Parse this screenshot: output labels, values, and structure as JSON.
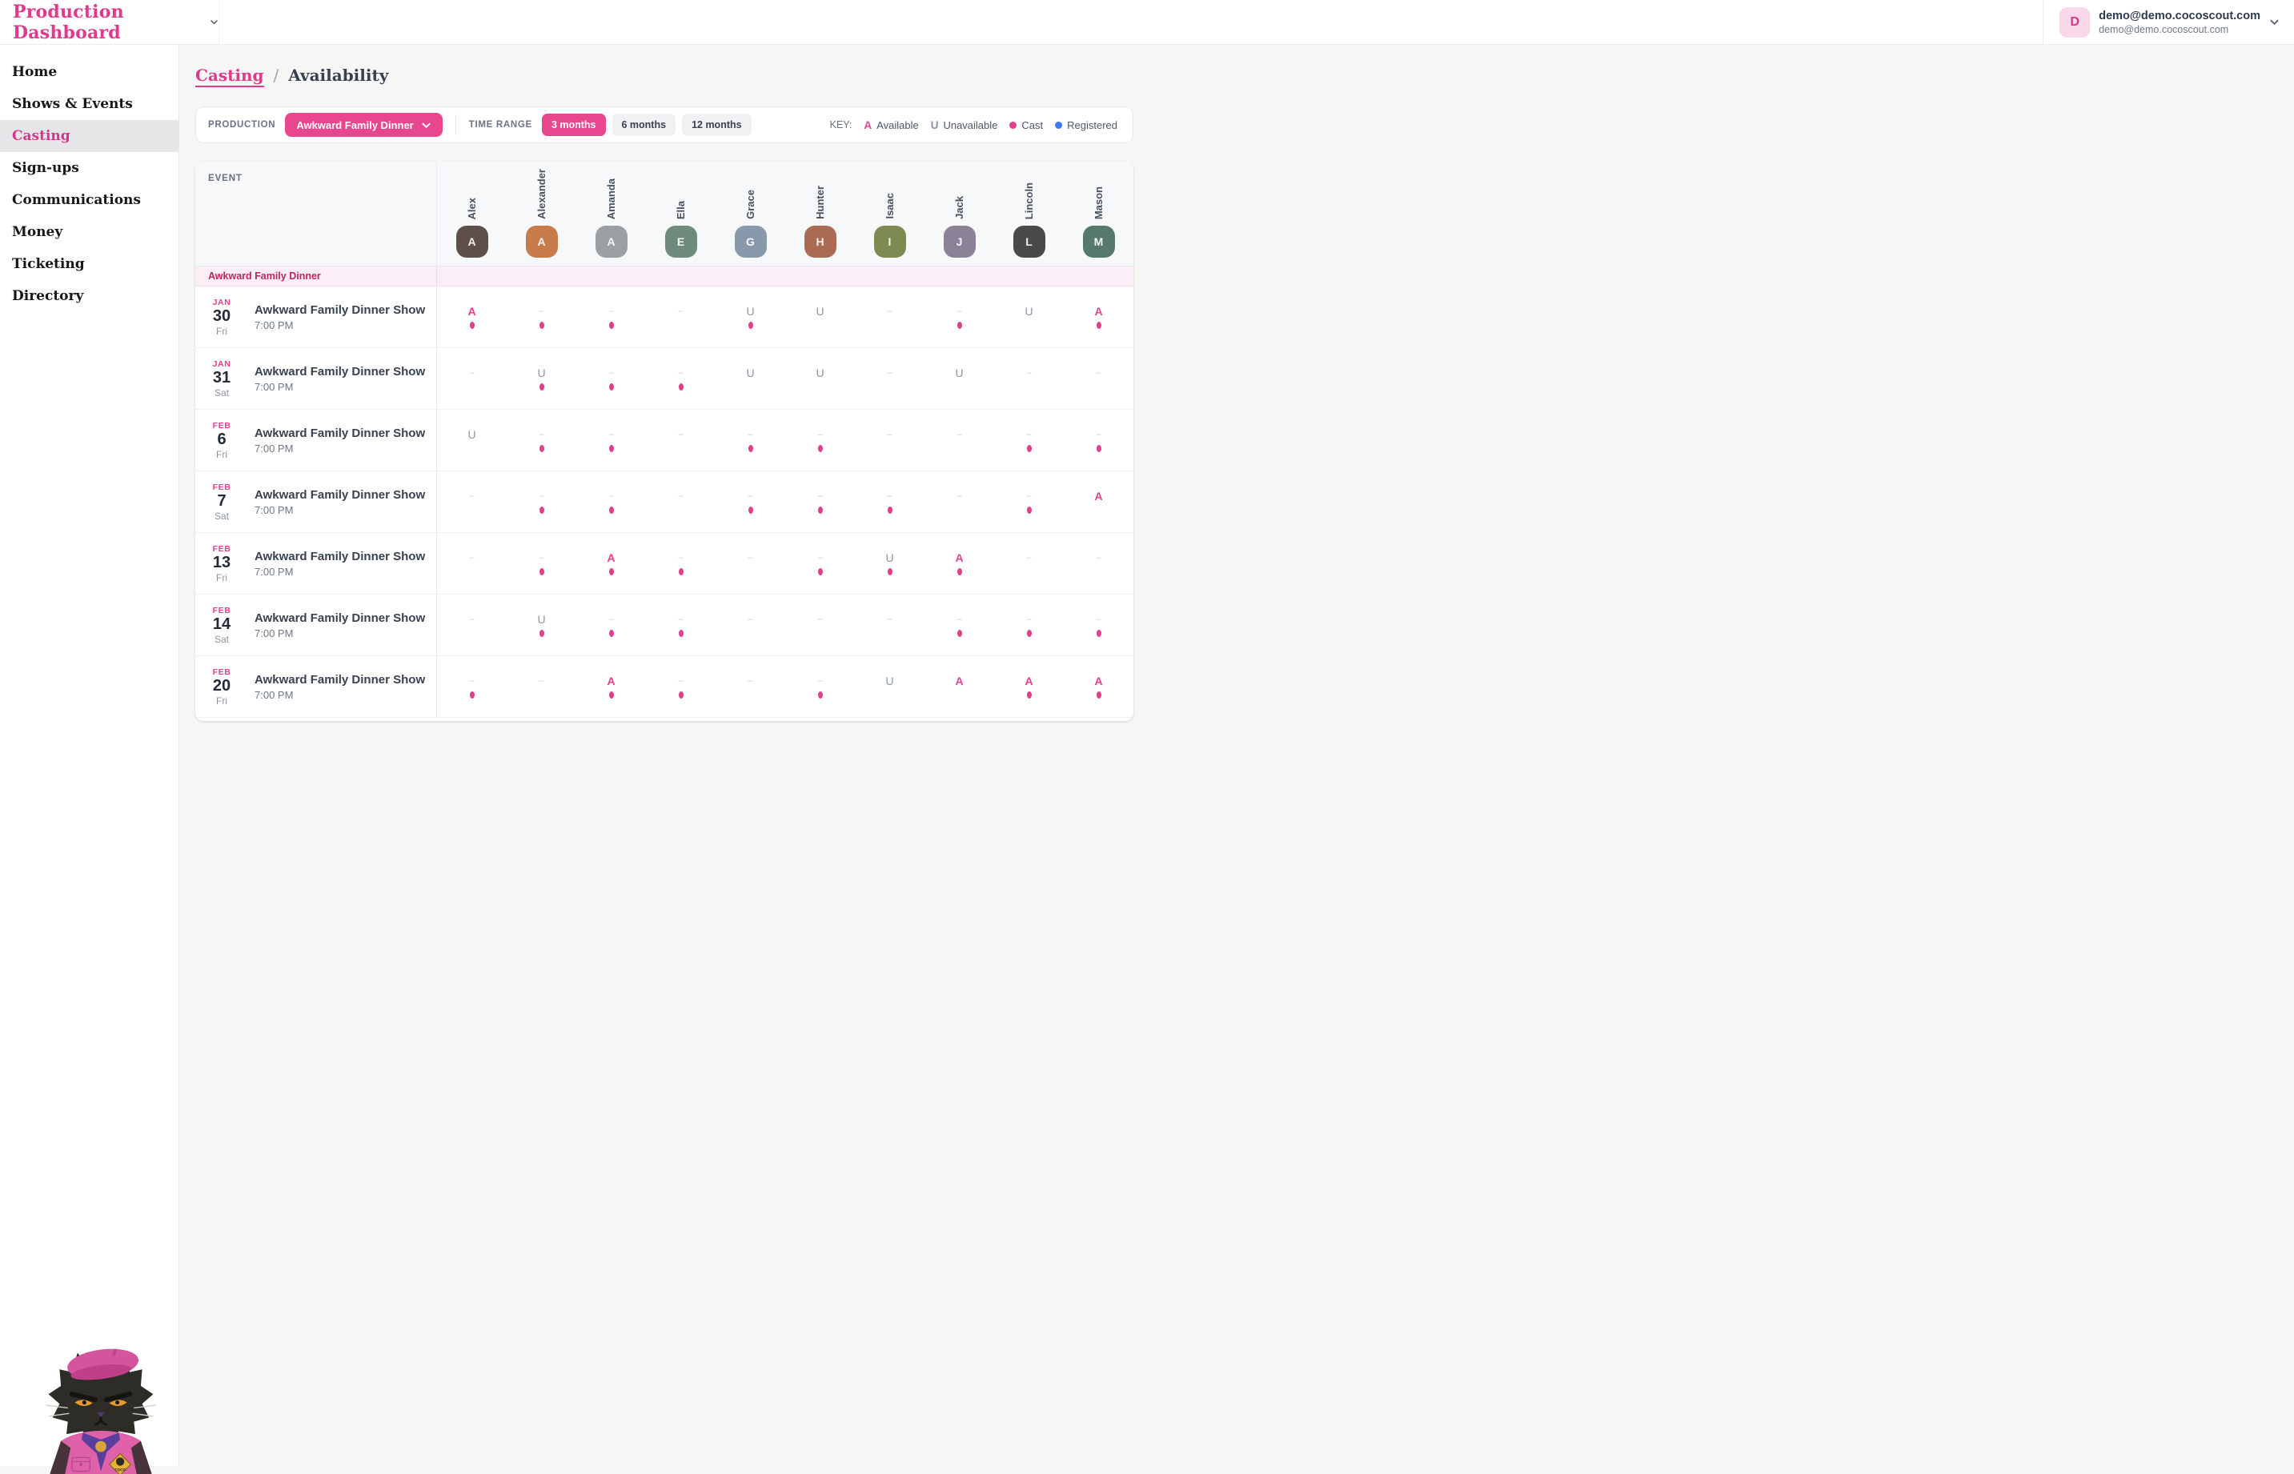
{
  "topbar": {
    "title": "Production Dashboard",
    "user_initial": "D",
    "user_name": "demo@demo.cocoscout.com",
    "user_email": "demo@demo.cocoscout.com"
  },
  "sidebar": {
    "items": [
      {
        "label": "Home",
        "active": false
      },
      {
        "label": "Shows & Events",
        "active": false
      },
      {
        "label": "Casting",
        "active": true
      },
      {
        "label": "Sign-ups",
        "active": false
      },
      {
        "label": "Communications",
        "active": false
      },
      {
        "label": "Money",
        "active": false
      },
      {
        "label": "Ticketing",
        "active": false
      },
      {
        "label": "Directory",
        "active": false
      }
    ]
  },
  "breadcrumb": {
    "parent": "Casting",
    "separator": "/",
    "current": "Availability"
  },
  "controls": {
    "production_label": "PRODUCTION",
    "production_value": "Awkward Family Dinner",
    "time_range_label": "TIME RANGE",
    "time_ranges": [
      {
        "label": "3 months",
        "active": true
      },
      {
        "label": "6 months",
        "active": false
      },
      {
        "label": "12 months",
        "active": false
      }
    ],
    "key_label": "KEY:",
    "key_items": [
      {
        "type": "letter",
        "symbol": "A",
        "color": "#E5408C",
        "label": "Available"
      },
      {
        "type": "letter",
        "symbol": "U",
        "color": "#8B95A5",
        "label": "Unavailable"
      },
      {
        "type": "dot",
        "color": "#E23E8C",
        "label": "Cast"
      },
      {
        "type": "dot",
        "color": "#4277F5",
        "label": "Registered"
      }
    ]
  },
  "colors": {
    "accent": "#E8468F",
    "cast_dot": "#E23E8C",
    "registered": "#4277F5",
    "unavailable": "#8B95A5"
  },
  "table": {
    "event_header": "EVENT",
    "section_title": "Awkward Family Dinner",
    "people": [
      {
        "name": "Alex",
        "initial": "A",
        "avatar_color": "#5E4F49"
      },
      {
        "name": "Alexander",
        "initial": "A",
        "avatar_color": "#C77C4A"
      },
      {
        "name": "Amanda",
        "initial": "A",
        "avatar_color": "#9AA0A4"
      },
      {
        "name": "Ella",
        "initial": "E",
        "avatar_color": "#6F8B7C"
      },
      {
        "name": "Grace",
        "initial": "G",
        "avatar_color": "#8799AB"
      },
      {
        "name": "Hunter",
        "initial": "H",
        "avatar_color": "#A96B52"
      },
      {
        "name": "Isaac",
        "initial": "I",
        "avatar_color": "#7D8A52"
      },
      {
        "name": "Jack",
        "initial": "J",
        "avatar_color": "#8B8298"
      },
      {
        "name": "Lincoln",
        "initial": "L",
        "avatar_color": "#4A4A4A"
      },
      {
        "name": "Mason",
        "initial": "M",
        "avatar_color": "#55796B"
      }
    ],
    "rows": [
      {
        "month": "JAN",
        "day": "30",
        "weekday": "Fri",
        "title": "Awkward Family Dinner Show",
        "time": "7:00 PM",
        "marks": [
          {
            "status": "A",
            "cast": true
          },
          {
            "status": "-",
            "cast": true
          },
          {
            "status": "-",
            "cast": true
          },
          {
            "status": "-",
            "cast": false
          },
          {
            "status": "U",
            "cast": true
          },
          {
            "status": "U",
            "cast": false
          },
          {
            "status": "-",
            "cast": false
          },
          {
            "status": "-",
            "cast": true
          },
          {
            "status": "U",
            "cast": false
          },
          {
            "status": "A",
            "cast": true
          }
        ]
      },
      {
        "month": "JAN",
        "day": "31",
        "weekday": "Sat",
        "title": "Awkward Family Dinner Show",
        "time": "7:00 PM",
        "marks": [
          {
            "status": "-",
            "cast": false
          },
          {
            "status": "U",
            "cast": true
          },
          {
            "status": "-",
            "cast": true
          },
          {
            "status": "-",
            "cast": true
          },
          {
            "status": "U",
            "cast": false
          },
          {
            "status": "U",
            "cast": false
          },
          {
            "status": "-",
            "cast": false
          },
          {
            "status": "U",
            "cast": false
          },
          {
            "status": "-",
            "cast": false
          },
          {
            "status": "-",
            "cast": false
          }
        ]
      },
      {
        "month": "FEB",
        "day": "6",
        "weekday": "Fri",
        "title": "Awkward Family Dinner Show",
        "time": "7:00 PM",
        "marks": [
          {
            "status": "U",
            "cast": false
          },
          {
            "status": "-",
            "cast": true
          },
          {
            "status": "-",
            "cast": true
          },
          {
            "status": "-",
            "cast": false
          },
          {
            "status": "-",
            "cast": true
          },
          {
            "status": "-",
            "cast": true
          },
          {
            "status": "-",
            "cast": false
          },
          {
            "status": "-",
            "cast": false
          },
          {
            "status": "-",
            "cast": true
          },
          {
            "status": "-",
            "cast": true
          }
        ]
      },
      {
        "month": "FEB",
        "day": "7",
        "weekday": "Sat",
        "title": "Awkward Family Dinner Show",
        "time": "7:00 PM",
        "marks": [
          {
            "status": "-",
            "cast": false
          },
          {
            "status": "-",
            "cast": true
          },
          {
            "status": "-",
            "cast": true
          },
          {
            "status": "-",
            "cast": false
          },
          {
            "status": "-",
            "cast": true
          },
          {
            "status": "-",
            "cast": true
          },
          {
            "status": "-",
            "cast": true
          },
          {
            "status": "-",
            "cast": false
          },
          {
            "status": "-",
            "cast": true
          },
          {
            "status": "A",
            "cast": false
          }
        ]
      },
      {
        "month": "FEB",
        "day": "13",
        "weekday": "Fri",
        "title": "Awkward Family Dinner Show",
        "time": "7:00 PM",
        "marks": [
          {
            "status": "-",
            "cast": false
          },
          {
            "status": "-",
            "cast": true
          },
          {
            "status": "A",
            "cast": true
          },
          {
            "status": "-",
            "cast": true
          },
          {
            "status": "-",
            "cast": false
          },
          {
            "status": "-",
            "cast": true
          },
          {
            "status": "U",
            "cast": true
          },
          {
            "status": "A",
            "cast": true
          },
          {
            "status": "-",
            "cast": false
          },
          {
            "status": "-",
            "cast": false
          }
        ]
      },
      {
        "month": "FEB",
        "day": "14",
        "weekday": "Sat",
        "title": "Awkward Family Dinner Show",
        "time": "7:00 PM",
        "marks": [
          {
            "status": "-",
            "cast": false
          },
          {
            "status": "U",
            "cast": true
          },
          {
            "status": "-",
            "cast": true
          },
          {
            "status": "-",
            "cast": true
          },
          {
            "status": "-",
            "cast": false
          },
          {
            "status": "-",
            "cast": false
          },
          {
            "status": "-",
            "cast": false
          },
          {
            "status": "-",
            "cast": true
          },
          {
            "status": "-",
            "cast": true
          },
          {
            "status": "-",
            "cast": true
          }
        ]
      },
      {
        "month": "FEB",
        "day": "20",
        "weekday": "Fri",
        "title": "Awkward Family Dinner Show",
        "time": "7:00 PM",
        "marks": [
          {
            "status": "-",
            "cast": true
          },
          {
            "status": "-",
            "cast": false
          },
          {
            "status": "A",
            "cast": true
          },
          {
            "status": "-",
            "cast": true
          },
          {
            "status": "-",
            "cast": false
          },
          {
            "status": "-",
            "cast": true
          },
          {
            "status": "U",
            "cast": false
          },
          {
            "status": "A",
            "cast": false
          },
          {
            "status": "A",
            "cast": true
          },
          {
            "status": "A",
            "cast": true
          }
        ]
      }
    ]
  }
}
